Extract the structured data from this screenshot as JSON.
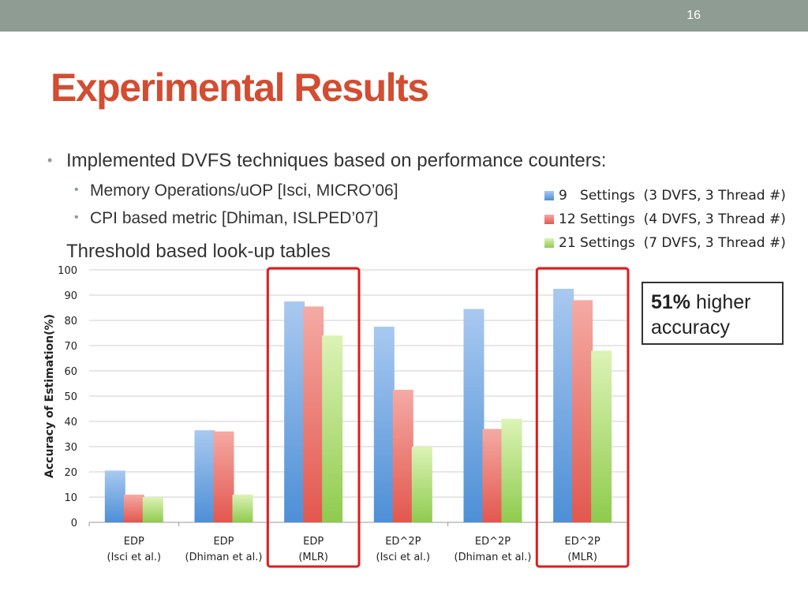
{
  "slide": {
    "number": "16",
    "title": "Experimental Results"
  },
  "bullets": [
    {
      "level": 1,
      "text": "Implemented DVFS techniques based on performance counters:"
    },
    {
      "level": 2,
      "text": "Memory Operations/uOP [Isci, MICRO’06]"
    },
    {
      "level": 2,
      "text": "CPI based metric [Dhiman, ISLPED’07]"
    },
    {
      "level": 1,
      "text": "Threshold based look-up tables"
    }
  ],
  "callout": {
    "bold": "51%",
    "rest": " higher accuracy"
  },
  "colors": {
    "title": "#d24d31",
    "topbar": "#8f9c93",
    "highlight_box": "#e01b1b",
    "series": [
      "#5b9bd5",
      "#e8625a",
      "#9bd35a"
    ]
  },
  "chart_data": {
    "type": "bar",
    "ylabel": "Accuracy of Estimation(%)",
    "ylim": [
      0,
      100
    ],
    "yticks": [
      "0",
      "10",
      "20",
      "30",
      "40",
      "50",
      "60",
      "70",
      "80",
      "90",
      "100"
    ],
    "grid": true,
    "legend_position": "top-right",
    "categories": [
      [
        "EDP",
        "(Isci et al.)"
      ],
      [
        "EDP",
        "(Dhiman et al.)"
      ],
      [
        "EDP",
        "(MLR)"
      ],
      [
        "ED^2P",
        "(Isci et al.)"
      ],
      [
        "ED^2P",
        "(Dhiman et al.)"
      ],
      [
        "ED^2P",
        "(MLR)"
      ]
    ],
    "series": [
      {
        "name": "9   Settings  (3 DVFS, 3 Thread #)",
        "values": [
          20.5,
          36.5,
          87.5,
          77.5,
          84.5,
          92.5
        ]
      },
      {
        "name": "12 Settings  (4 DVFS, 3 Thread #)",
        "values": [
          11,
          36,
          85.5,
          52.5,
          37,
          88
        ]
      },
      {
        "name": "21 Settings  (7 DVFS, 3 Thread #)",
        "values": [
          10,
          11,
          74,
          30,
          41,
          68
        ]
      }
    ],
    "highlighted_categories": [
      2,
      5
    ]
  }
}
